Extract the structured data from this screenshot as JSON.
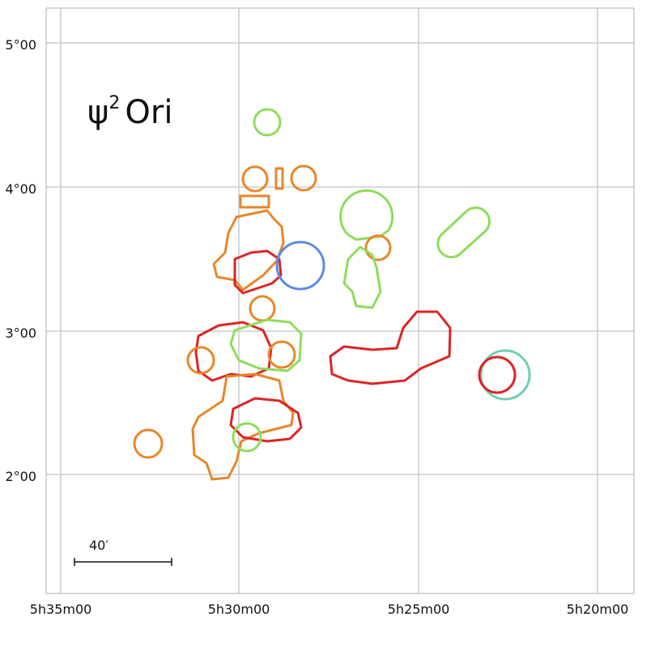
{
  "title": {
    "symbol": "ψ",
    "superscript": "2",
    "name": "Ori"
  },
  "y_axis": {
    "labels": [
      "5°00",
      "4°00",
      "3°00",
      "2°00"
    ]
  },
  "x_axis": {
    "labels": [
      "5h35m00",
      "5h30m00",
      "5h25m00",
      "5h20m00"
    ]
  },
  "scale_bar": {
    "label": "40′"
  }
}
